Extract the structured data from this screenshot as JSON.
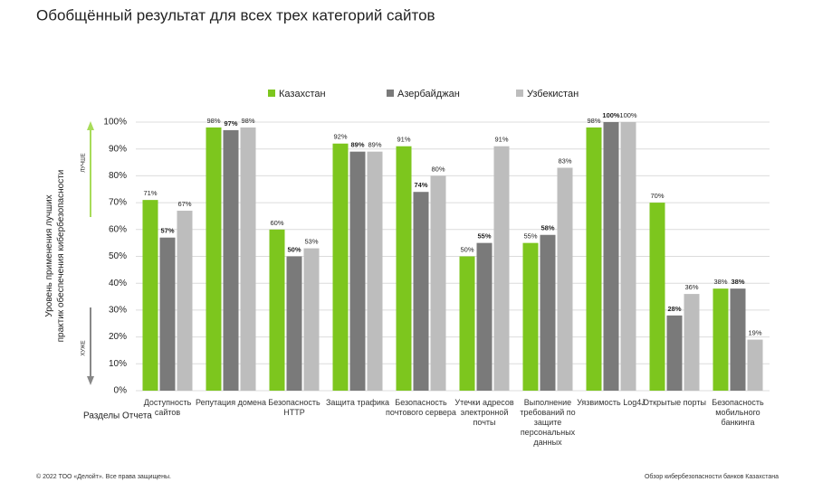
{
  "chart_data": {
    "type": "bar",
    "title": "Обобщённый результат для всех трех категорий сайтов",
    "y_label": "Уровень применения лучших практик обеспечения кибербезопасности",
    "better_label": "ЛУЧШЕ",
    "worse_label": "ХУЖЕ",
    "x_label": "Разделы Отчета",
    "categories": [
      "Доступность сайтов",
      "Репутация домена",
      "Безопасность HTTP",
      "Защита трафика",
      "Безопасность почтового сервера",
      "Утечки адресов электронной почты",
      "Выполнение требований по защите персональных данных",
      "Уязвимость Log4J",
      "Открытые порты",
      "Безопасность мобильного банкинга"
    ],
    "series": [
      {
        "name": "Казахстан",
        "color": "#7dc61e",
        "values": [
          71,
          98,
          60,
          92,
          91,
          50,
          55,
          98,
          70,
          38
        ],
        "value_labels": [
          "71%",
          "98%",
          "60%",
          "92%",
          "91%",
          "50%",
          "55%",
          "98%",
          "70%",
          "38%"
        ]
      },
      {
        "name": "Азербайджан",
        "color": "#7a7a7a",
        "values": [
          57,
          97,
          50,
          89,
          74,
          55,
          58,
          100,
          28,
          38
        ],
        "value_labels": [
          "57%",
          "97%",
          "50%",
          "89%",
          "74%",
          "55%",
          "58%",
          "100%",
          "28%",
          "38%"
        ]
      },
      {
        "name": "Узбекистан",
        "color": "#bdbdbd",
        "values": [
          67,
          98,
          53,
          89,
          80,
          91,
          83,
          100,
          36,
          19
        ],
        "value_labels": [
          "67%",
          "98%",
          "53%",
          "89%",
          "80%",
          "91%",
          "83%",
          "100%",
          "36%",
          "19%"
        ]
      }
    ],
    "ylim": [
      0,
      100
    ],
    "yticks": [
      {
        "value": 0,
        "label": "0%"
      },
      {
        "value": 10,
        "label": "10%"
      },
      {
        "value": 20,
        "label": "20%"
      },
      {
        "value": 30,
        "label": "30%"
      },
      {
        "value": 40,
        "label": "40%"
      },
      {
        "value": 50,
        "label": "50%"
      },
      {
        "value": 60,
        "label": "60%"
      },
      {
        "value": 70,
        "label": "70%"
      },
      {
        "value": 80,
        "label": "80%"
      },
      {
        "value": 90,
        "label": "90%"
      },
      {
        "value": 100,
        "label": "100%"
      }
    ],
    "grid": true
  },
  "footer_left": "© 2022 ТОО «Делойт». Все права защищены.",
  "footer_right": "Обзор кибербезопасности банков Казахстана"
}
